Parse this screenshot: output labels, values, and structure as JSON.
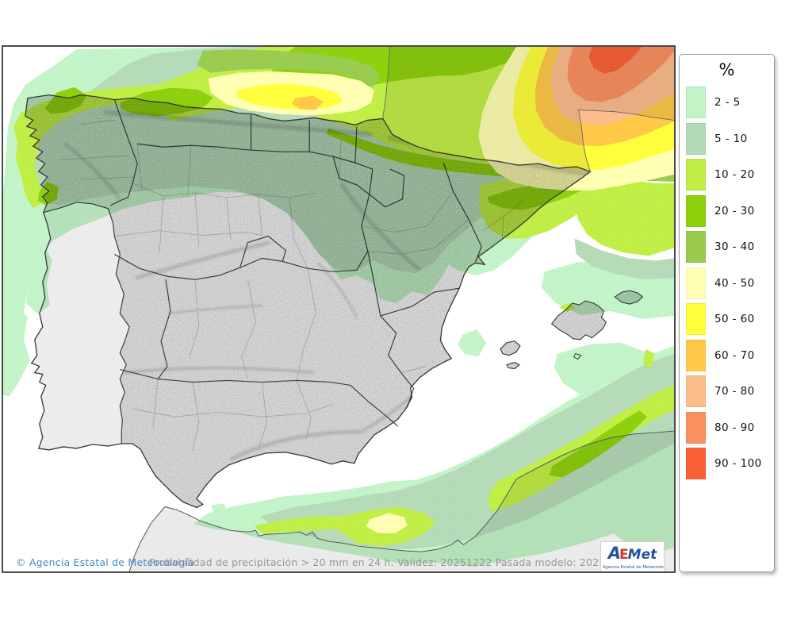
{
  "legend": {
    "title": "%",
    "items": [
      {
        "range": "2 - 5",
        "color": "#c3f4c8"
      },
      {
        "range": "5 - 10",
        "color": "#b5dab8"
      },
      {
        "range": "10 - 20",
        "color": "#c0ee44"
      },
      {
        "range": "20 - 30",
        "color": "#8ed00c"
      },
      {
        "range": "30 - 40",
        "color": "#99cb4e"
      },
      {
        "range": "40 - 50",
        "color": "#ffffb3"
      },
      {
        "range": "50 - 60",
        "color": "#ffff3b"
      },
      {
        "range": "60 - 70",
        "color": "#ffc947"
      },
      {
        "range": "70 - 80",
        "color": "#fcbd8d"
      },
      {
        "range": "80 - 90",
        "color": "#fb9060"
      },
      {
        "range": "90 - 100",
        "color": "#fa6135"
      }
    ]
  },
  "footer": {
    "copyright": "© Agencia Estatal de Meteorología",
    "description": "Probabilidad de precipitación > 20 mm en 24 h. Validez: 20251222 Pasada modelo: 2025122000"
  },
  "logo": {
    "part1": "A",
    "part2": "E",
    "part3": "Met",
    "subtitle": "Agencia Estatal de Meteorología"
  }
}
